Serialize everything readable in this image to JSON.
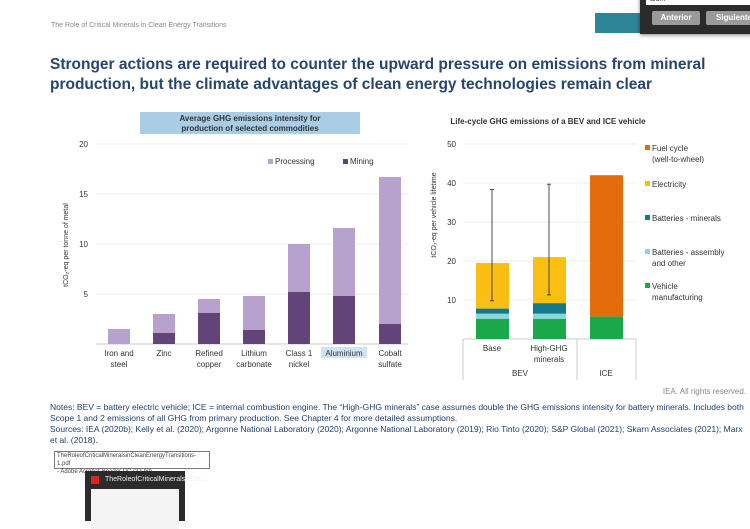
{
  "header": {
    "doc_title": "The Role of Critical Minerals in Clean Energy Transitions"
  },
  "find_bar": {
    "query": "alum",
    "prev_label": "Anterior",
    "next_label": "Siguiente"
  },
  "slide_title": "Stronger actions are required to counter the upward pressure on emissions from mineral production, but the climate advantages of clean energy technologies remain clear",
  "chart_data": [
    {
      "type": "bar",
      "stacked": true,
      "title": "Average GHG emissions intensity for production of selected commodities",
      "ylabel": "tCO₂-eq per tonne of metal",
      "ylim": [
        0,
        20
      ],
      "yticks": [
        5,
        10,
        15,
        20
      ],
      "categories": [
        "Iron and steel",
        "Zinc",
        "Refined copper",
        "Lithium carbonate",
        "Class 1 nickel",
        "Aluminium",
        "Cobalt sulfate"
      ],
      "highlighted_category": "Aluminium",
      "legend_placement": "top-right",
      "series": [
        {
          "name": "Mining",
          "color": "#634479",
          "values": [
            0,
            1.1,
            3.1,
            1.4,
            5.2,
            4.8,
            2.0
          ]
        },
        {
          "name": "Processing",
          "color": "#b6a2cc",
          "values": [
            1.5,
            1.9,
            1.4,
            3.4,
            4.8,
            6.8,
            14.7
          ]
        }
      ]
    },
    {
      "type": "bar",
      "stacked": true,
      "title": "Life-cycle GHG emissions of a BEV and ICE vehicle",
      "ylabel": "tCO₂-eq per vehicle lifetime",
      "ylim": [
        0,
        50
      ],
      "yticks": [
        10,
        20,
        30,
        40,
        50
      ],
      "categories": [
        "Base",
        "High-GHG minerals",
        ""
      ],
      "groups": [
        {
          "label": "BEV",
          "span": 2
        },
        {
          "label": "ICE",
          "span": 1
        }
      ],
      "legend_placement": "right",
      "series": [
        {
          "name": "Vehicle manufacturing",
          "color": "#1aa84b",
          "values": [
            5.2,
            5.2,
            5.8
          ]
        },
        {
          "name": "Batteries - assembly and other",
          "color": "#8dd3e0",
          "values": [
            1.3,
            1.3,
            0
          ]
        },
        {
          "name": "Batteries - minerals",
          "color": "#13798c",
          "values": [
            1.3,
            2.7,
            0
          ]
        },
        {
          "name": "Electricity",
          "color": "#fbbe12",
          "values": [
            11.7,
            11.8,
            0
          ]
        },
        {
          "name": "Fuel cycle (well-to-wheel)",
          "color": "#e46c0a",
          "values": [
            0,
            0,
            36.2
          ]
        }
      ],
      "error_bars": [
        {
          "low": 9.8,
          "high": 38.3
        },
        {
          "low": 11.3,
          "high": 39.7
        },
        null
      ]
    }
  ],
  "credit": "IEA. All rights reserved.",
  "notes": {
    "line1": "Notes: BEV = battery electric vehicle; ICE = internal combustion engine. The “High-GHG minerals” case assumes double the GHG emissions intensity for battery minerals. Includes both Scope 1 and 2 emissions of all GHG from primary production. See Chapter 4 for more detailed assumptions.",
    "line2": "Sources: IEA (2020b); Kelly et al. (2020); Argonne National Laboratory (2020); Argonne National Laboratory (2019); Rio Tinto (2020); S&P Global (2021); Skarn Associates (2021); Marx et al. (2018)."
  },
  "taskbar_tooltip": {
    "line1": "TheRoleofCriticalMineralsinCleanEnergyTransitions-1.pdf",
    "line2": "- Adobe Acrobat Reader DC (32-bit)"
  },
  "taskbar_thumbnail": {
    "title": "TheRoleofCriticalMineralsinCle..."
  }
}
